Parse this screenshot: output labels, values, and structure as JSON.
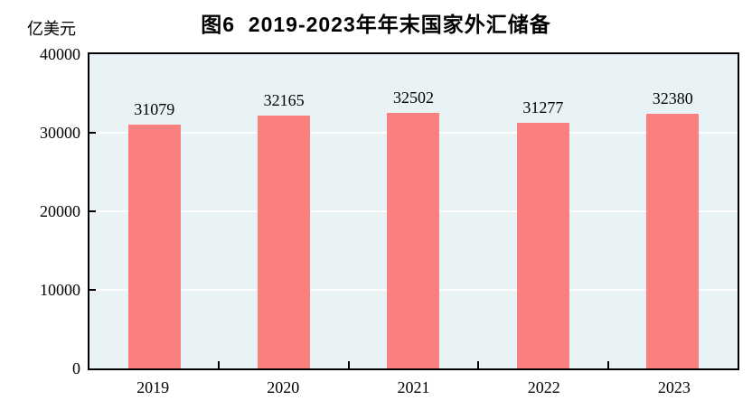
{
  "title": "图6  2019-2023年年末国家外汇储备",
  "chart_data": {
    "type": "bar",
    "title": "图6  2019-2023年年末国家外汇储备",
    "categories": [
      "2019",
      "2020",
      "2021",
      "2022",
      "2023"
    ],
    "values": [
      31079,
      32165,
      32502,
      31277,
      32380
    ],
    "xlabel": "",
    "ylabel": "亿美元",
    "ylim": [
      0,
      40000
    ],
    "yticks": [
      0,
      10000,
      20000,
      30000,
      40000
    ],
    "gridlines": [
      10000,
      20000,
      30000
    ],
    "grid": "horizontal",
    "legend": "none",
    "bar_labels_shown": true
  },
  "colors": {
    "bar": "#fa7f7f",
    "plot_background": "#e9f3f6",
    "gridline": "#ffffff",
    "axis_frame": "#000000",
    "text": "#000000"
  }
}
